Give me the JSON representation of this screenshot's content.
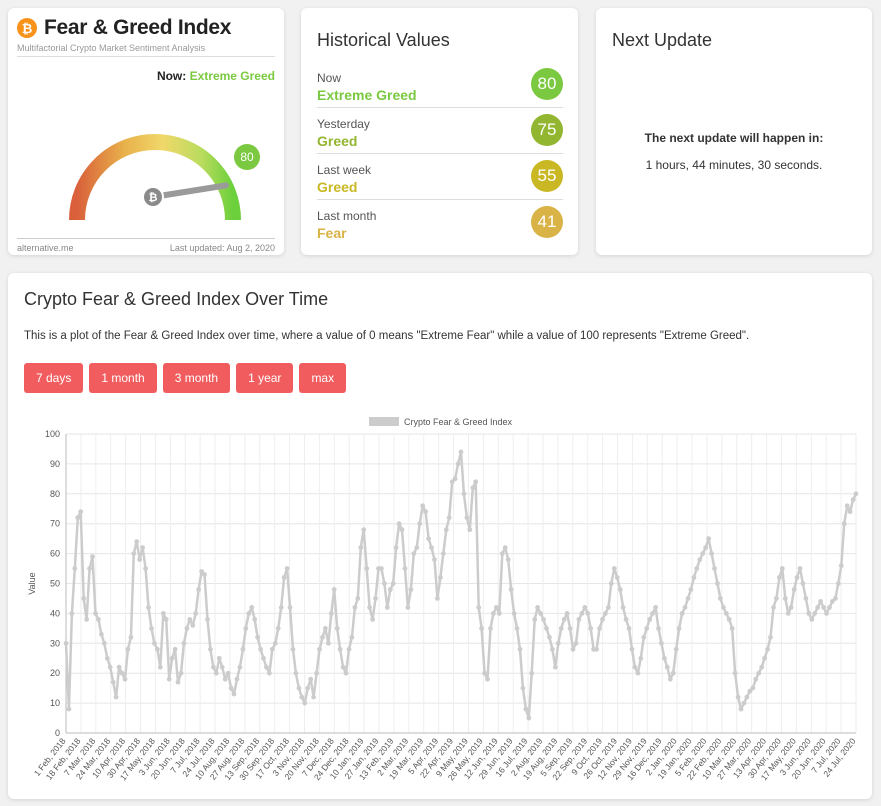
{
  "widget": {
    "title": "Fear & Greed Index",
    "subtitle": "Multifactorial Crypto Market Sentiment Analysis",
    "now_label": "Now:",
    "now_classification": "Extreme Greed",
    "value": 80,
    "source": "alternative.me",
    "last_updated": "Last updated: Aug 2, 2020",
    "icon": "bitcoin-icon",
    "badge_color": "#7bc940"
  },
  "historical": {
    "title": "Historical Values",
    "rows": [
      {
        "label": "Now",
        "classification": "Extreme Greed",
        "value": "80",
        "color": "#7bc940"
      },
      {
        "label": "Yesterday",
        "classification": "Greed",
        "value": "75",
        "color": "#93b630"
      },
      {
        "label": "Last week",
        "classification": "Greed",
        "value": "55",
        "color": "#c9b824"
      },
      {
        "label": "Last month",
        "classification": "Fear",
        "value": "41",
        "color": "#d9b346"
      }
    ]
  },
  "next_update": {
    "title": "Next Update",
    "question": "The next update will happen in:",
    "time": "1 hours, 44 minutes, 30 seconds."
  },
  "chart_section": {
    "title": "Crypto Fear & Greed Index Over Time",
    "description": "This is a plot of the Fear & Greed Index over time, where a value of 0 means \"Extreme Fear\" while a value of 100 represents \"Extreme Greed\".",
    "buttons": [
      "7 days",
      "1 month",
      "3 month",
      "1 year",
      "max"
    ],
    "button_color": "#f15d5e"
  },
  "chart_data": {
    "type": "line",
    "legend": "Crypto Fear & Greed Index",
    "legend_position": "top",
    "ylabel": "Value",
    "xlabel": "",
    "ylim": [
      0,
      100
    ],
    "yticks": [
      0,
      10,
      20,
      30,
      40,
      50,
      60,
      70,
      80,
      90,
      100
    ],
    "grid": true,
    "line_color": "#cccccc",
    "x_tick_labels": [
      "1 Feb, 2018",
      "18 Feb, 2018",
      "7 Mar, 2018",
      "24 Mar, 2018",
      "10 Apr, 2018",
      "30 Apr, 2018",
      "17 May, 2018",
      "3 Jun, 2018",
      "20 Jun, 2018",
      "7 Jul, 2018",
      "24 Jul, 2018",
      "10 Aug, 2018",
      "27 Aug, 2018",
      "13 Sep, 2018",
      "30 Sep, 2018",
      "17 Oct, 2018",
      "3 Nov, 2018",
      "20 Nov, 2018",
      "7 Dec, 2018",
      "24 Dec, 2018",
      "10 Jan, 2019",
      "27 Jan, 2019",
      "13 Feb, 2019",
      "2 Mar, 2019",
      "19 Mar, 2019",
      "5 Apr, 2019",
      "22 Apr, 2019",
      "9 May, 2019",
      "26 May, 2019",
      "12 Jun, 2019",
      "29 Jun, 2019",
      "16 Jul, 2019",
      "2 Aug, 2019",
      "19 Aug, 2019",
      "5 Sep, 2019",
      "22 Sep, 2019",
      "9 Oct, 2019",
      "26 Oct, 2019",
      "12 Nov, 2019",
      "29 Nov, 2019",
      "16 Dec, 2019",
      "2 Jan, 2020",
      "19 Jan, 2020",
      "5 Feb, 2020",
      "22 Feb, 2020",
      "10 Mar, 2020",
      "27 Mar, 2020",
      "13 Apr, 2020",
      "30 Apr, 2020",
      "17 May, 2020",
      "3 Jun, 2020",
      "20 Jun, 2020",
      "7 Jul, 2020",
      "24 Jul, 2020"
    ],
    "values": [
      30,
      8,
      40,
      55,
      72,
      74,
      45,
      38,
      55,
      59,
      40,
      38,
      33,
      30,
      25,
      22,
      17,
      12,
      22,
      20,
      18,
      28,
      32,
      60,
      64,
      58,
      62,
      55,
      42,
      35,
      30,
      28,
      22,
      40,
      38,
      18,
      25,
      28,
      17,
      20,
      30,
      35,
      38,
      36,
      40,
      48,
      54,
      53,
      38,
      28,
      22,
      20,
      25,
      22,
      18,
      20,
      15,
      13,
      18,
      22,
      28,
      35,
      40,
      42,
      38,
      32,
      28,
      25,
      22,
      20,
      28,
      30,
      35,
      42,
      52,
      55,
      42,
      28,
      20,
      15,
      12,
      10,
      15,
      18,
      12,
      20,
      28,
      32,
      35,
      30,
      40,
      48,
      35,
      28,
      22,
      20,
      28,
      32,
      42,
      45,
      62,
      68,
      55,
      42,
      38,
      45,
      55,
      55,
      50,
      42,
      48,
      50,
      62,
      70,
      68,
      55,
      42,
      48,
      60,
      62,
      70,
      76,
      74,
      65,
      62,
      58,
      45,
      52,
      60,
      68,
      72,
      84,
      85,
      90,
      94,
      80,
      72,
      68,
      82,
      84,
      42,
      35,
      20,
      18,
      35,
      40,
      42,
      40,
      60,
      62,
      58,
      48,
      40,
      35,
      28,
      15,
      8,
      5,
      20,
      38,
      42,
      40,
      38,
      35,
      32,
      28,
      22,
      30,
      35,
      38,
      40,
      35,
      28,
      30,
      38,
      40,
      42,
      40,
      35,
      28,
      28,
      35,
      38,
      40,
      42,
      50,
      55,
      52,
      48,
      42,
      38,
      35,
      28,
      22,
      20,
      25,
      32,
      35,
      38,
      40,
      42,
      35,
      30,
      25,
      22,
      18,
      20,
      28,
      35,
      40,
      42,
      45,
      48,
      52,
      55,
      58,
      60,
      62,
      65,
      60,
      55,
      50,
      45,
      42,
      40,
      38,
      35,
      20,
      12,
      8,
      10,
      12,
      14,
      15,
      18,
      20,
      22,
      25,
      28,
      32,
      42,
      45,
      52,
      55,
      45,
      40,
      42,
      48,
      52,
      55,
      50,
      45,
      40,
      38,
      40,
      42,
      44,
      42,
      40,
      42,
      44,
      45,
      50,
      56,
      70,
      76,
      74,
      78,
      80
    ]
  }
}
